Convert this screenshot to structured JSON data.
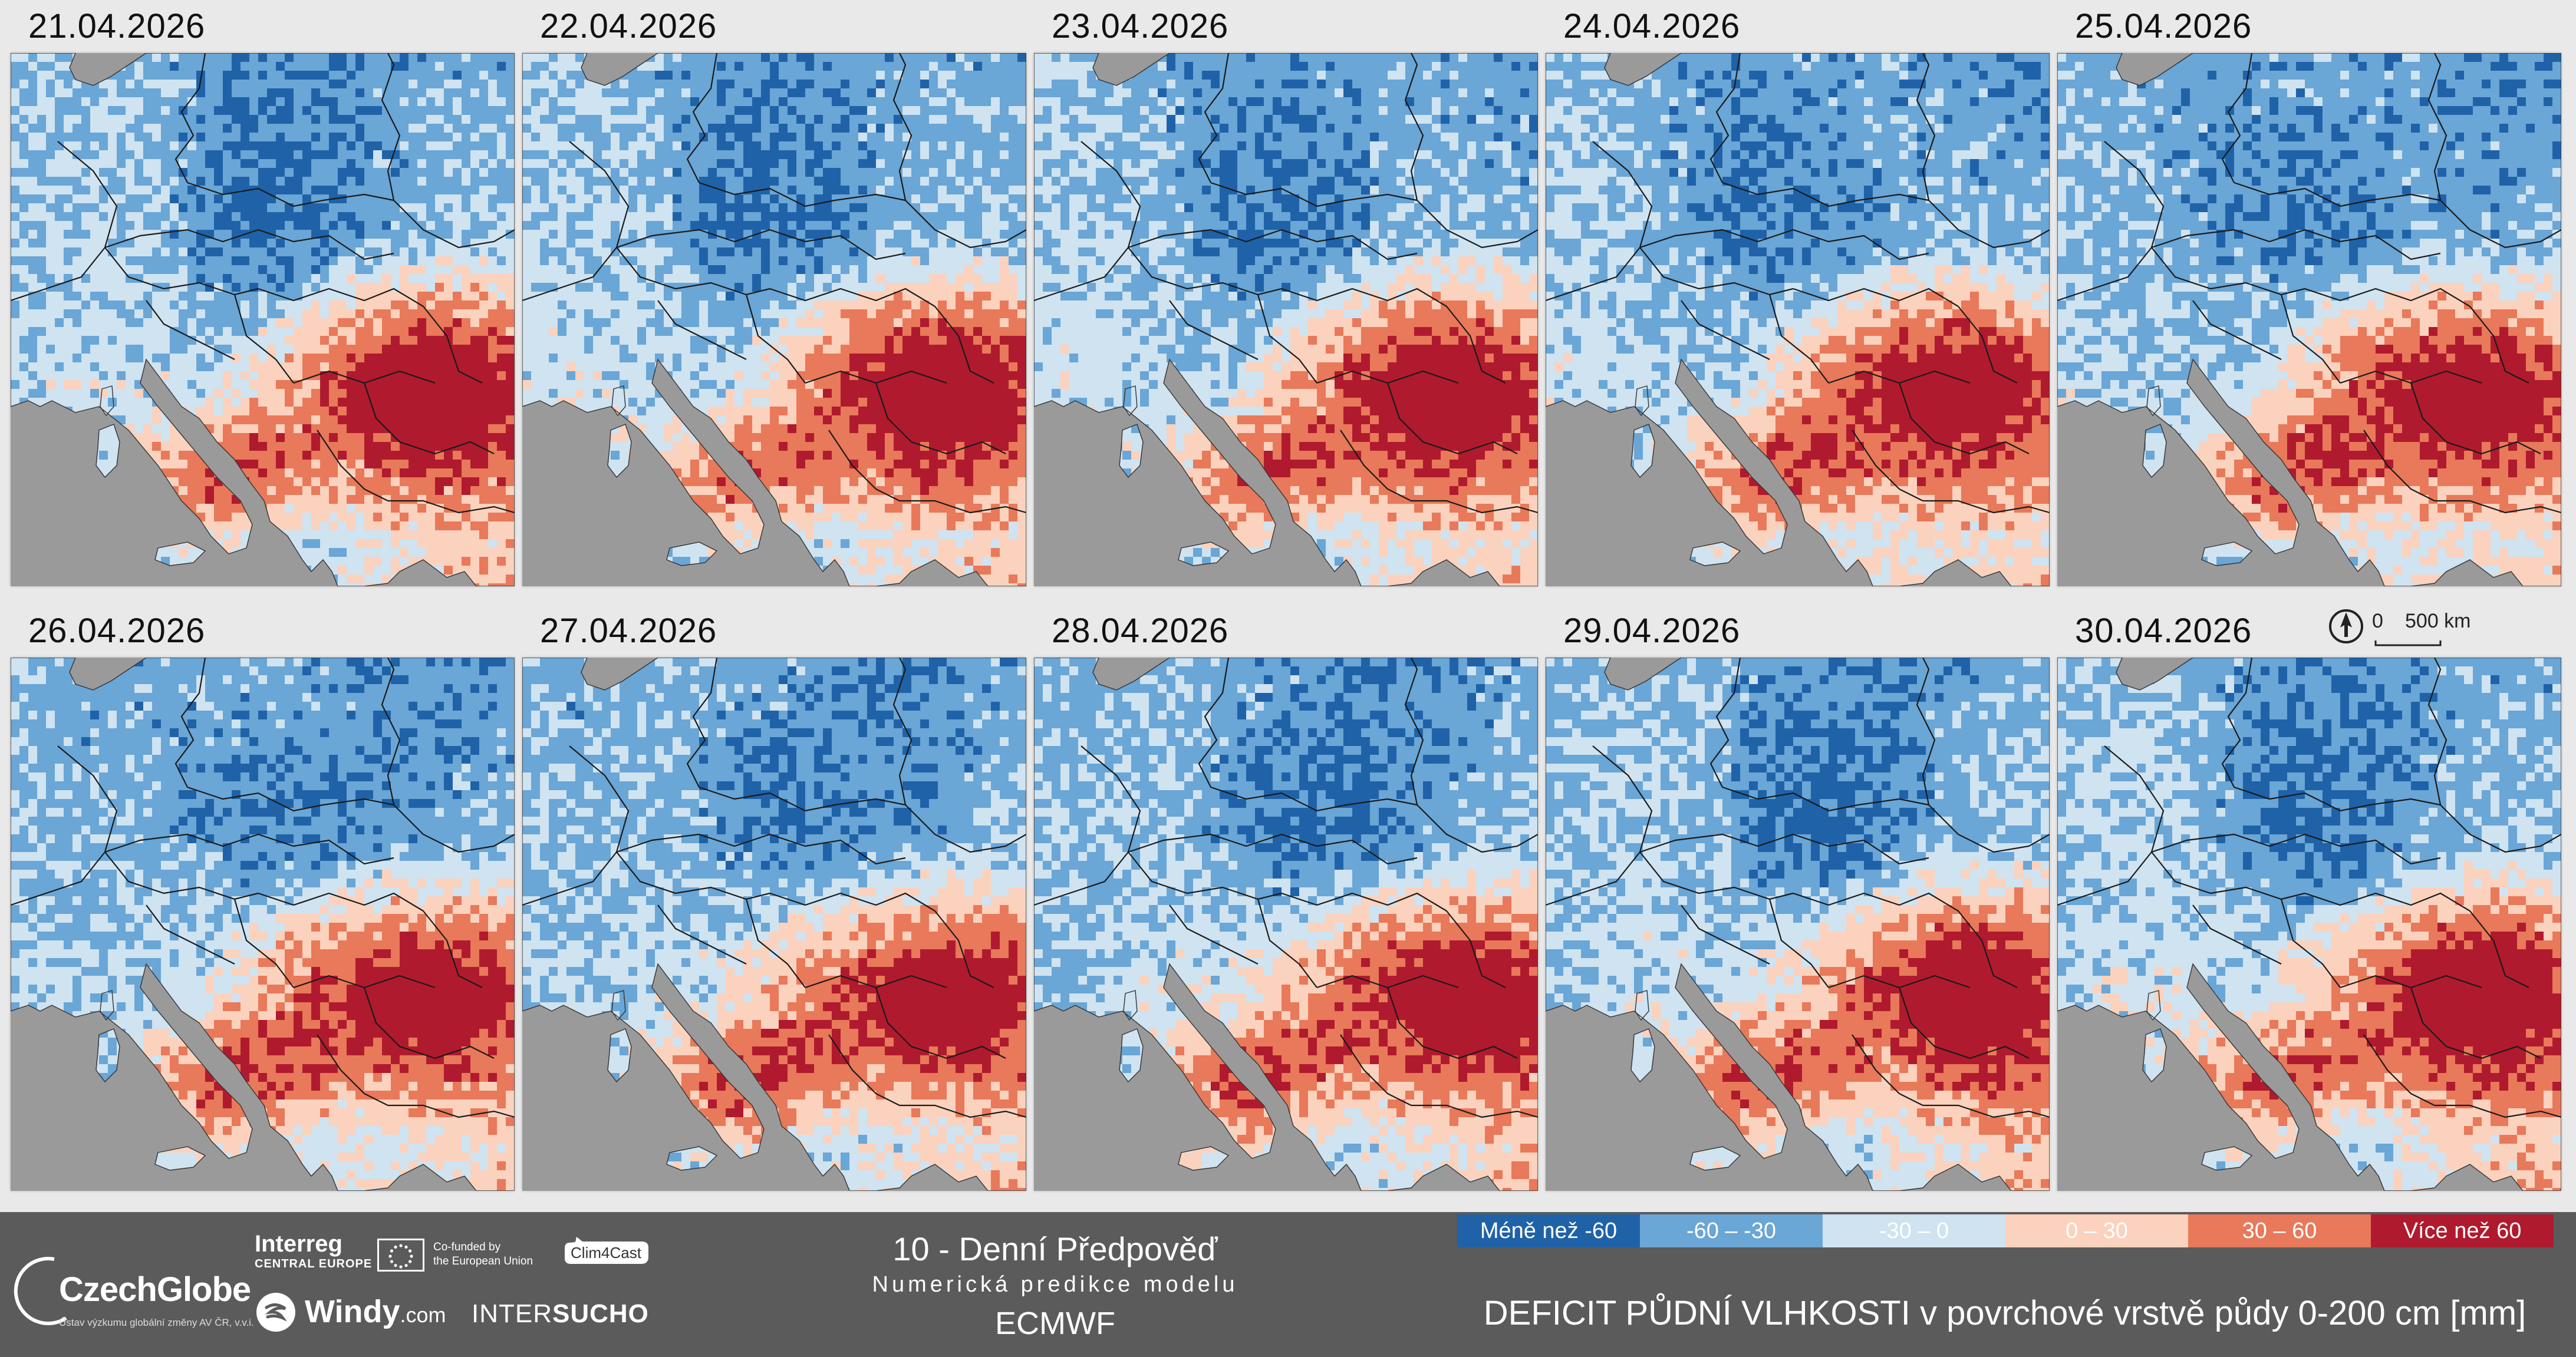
{
  "panels": [
    {
      "date": "21.04.2026"
    },
    {
      "date": "22.04.2026"
    },
    {
      "date": "23.04.2026"
    },
    {
      "date": "24.04.2026"
    },
    {
      "date": "25.04.2026"
    },
    {
      "date": "26.04.2026"
    },
    {
      "date": "27.04.2026"
    },
    {
      "date": "28.04.2026"
    },
    {
      "date": "29.04.2026"
    },
    {
      "date": "30.04.2026"
    }
  ],
  "scale": {
    "zero_label": "0",
    "distance_label": "500 km"
  },
  "legend": [
    {
      "label": "Méně než -60",
      "color": "#1f62a8",
      "text_color": "#ffffff"
    },
    {
      "label": "-60 – -30",
      "color": "#6aa6d6",
      "text_color": "#ffffff"
    },
    {
      "label": "-30 – 0",
      "color": "#cfe3f1",
      "text_color": "#ffffff"
    },
    {
      "label": "0 – 30",
      "color": "#fbd2bd",
      "text_color": "#ffffff"
    },
    {
      "label": "30 – 60",
      "color": "#e8795a",
      "text_color": "#ffffff"
    },
    {
      "label": "Více než 60",
      "color": "#b01a2e",
      "text_color": "#ffffff"
    }
  ],
  "footer": {
    "czechglobe": "CzechGlobe",
    "czechglobe_sub": "Ústav výzkumu globální změny AV ČR, v.v.i.",
    "interreg": "Interreg",
    "interreg_sub": "CENTRAL EUROPE",
    "eu_text_1": "Co-funded by",
    "eu_text_2": "the European Union",
    "clim4cast": "Clim4Cast",
    "windy": "Windy",
    "windy_com": ".com",
    "intersucho_a": "INTER",
    "intersucho_b": "SUCHO",
    "forecast_title": "10 - Denní Předpověď",
    "forecast_sub": "Numerická predikce modelu",
    "model": "ECMWF",
    "map_title": "DEFICIT PŮDNÍ VLHKOSTI v povrchové vrstvě půdy 0-200 cm [mm]"
  },
  "colors": {
    "sea": "#9a9a9a",
    "footer_bg": "#5b5b5b",
    "page_bg": "#e9e9e9"
  }
}
